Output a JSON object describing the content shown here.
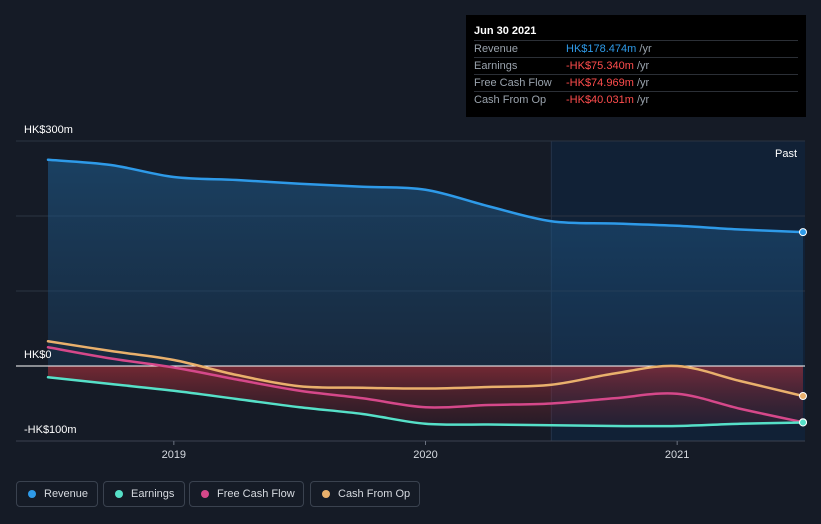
{
  "tooltip": {
    "date": "Jun 30 2021",
    "rows": [
      {
        "label": "Revenue",
        "value": "HK$178.474m",
        "unit": "/yr",
        "color": "#2e9ae8"
      },
      {
        "label": "Earnings",
        "value": "-HK$75.340m",
        "unit": "/yr",
        "color": "#ff4d4d"
      },
      {
        "label": "Free Cash Flow",
        "value": "-HK$74.969m",
        "unit": "/yr",
        "color": "#ff4d4d"
      },
      {
        "label": "Cash From Op",
        "value": "-HK$40.031m",
        "unit": "/yr",
        "color": "#ff4d4d"
      }
    ]
  },
  "past_label": "Past",
  "legend": [
    {
      "label": "Revenue",
      "color": "#2e9ae8"
    },
    {
      "label": "Earnings",
      "color": "#56e0c8"
    },
    {
      "label": "Free Cash Flow",
      "color": "#d5488a"
    },
    {
      "label": "Cash From Op",
      "color": "#e9b06c"
    }
  ],
  "chart_data": {
    "type": "line",
    "title": "",
    "xlabel": "",
    "ylabel": "",
    "x_ticks": [
      "2019",
      "2020",
      "2021"
    ],
    "y_tick_labels": [
      "HK$300m",
      "HK$0",
      "-HK$100m"
    ],
    "ylim": [
      -100,
      300
    ],
    "xlim": [
      2018.5,
      2021.5
    ],
    "grid": true,
    "past_region_start": 2020.5,
    "series": [
      {
        "name": "Revenue",
        "color": "#2e9ae8",
        "x": [
          2018.5,
          2018.75,
          2019.0,
          2019.25,
          2019.5,
          2019.75,
          2020.0,
          2020.25,
          2020.5,
          2020.75,
          2021.0,
          2021.25,
          2021.5
        ],
        "values": [
          275,
          268,
          252,
          248,
          243,
          239,
          235,
          213,
          193,
          190,
          187,
          182,
          178.5
        ]
      },
      {
        "name": "Earnings",
        "color": "#56e0c8",
        "x": [
          2018.5,
          2018.75,
          2019.0,
          2019.25,
          2019.5,
          2019.75,
          2020.0,
          2020.25,
          2020.5,
          2020.75,
          2021.0,
          2021.25,
          2021.5
        ],
        "values": [
          -15,
          -24,
          -33,
          -44,
          -55,
          -64,
          -77,
          -78,
          -79,
          -80,
          -80,
          -77,
          -75.3
        ]
      },
      {
        "name": "Free Cash Flow",
        "color": "#d5488a",
        "x": [
          2018.5,
          2018.75,
          2019.0,
          2019.25,
          2019.5,
          2019.75,
          2020.0,
          2020.25,
          2020.5,
          2020.75,
          2021.0,
          2021.25,
          2021.5
        ],
        "values": [
          25,
          10,
          -2,
          -18,
          -33,
          -43,
          -55,
          -52,
          -50,
          -43,
          -37,
          -57,
          -75
        ]
      },
      {
        "name": "Cash From Op",
        "color": "#e9b06c",
        "x": [
          2018.5,
          2018.75,
          2019.0,
          2019.25,
          2019.5,
          2019.75,
          2020.0,
          2020.25,
          2020.5,
          2020.75,
          2021.0,
          2021.25,
          2021.5
        ],
        "values": [
          33,
          20,
          8,
          -12,
          -27,
          -29,
          -30,
          -28,
          -25,
          -10,
          0,
          -20,
          -40
        ]
      }
    ]
  }
}
